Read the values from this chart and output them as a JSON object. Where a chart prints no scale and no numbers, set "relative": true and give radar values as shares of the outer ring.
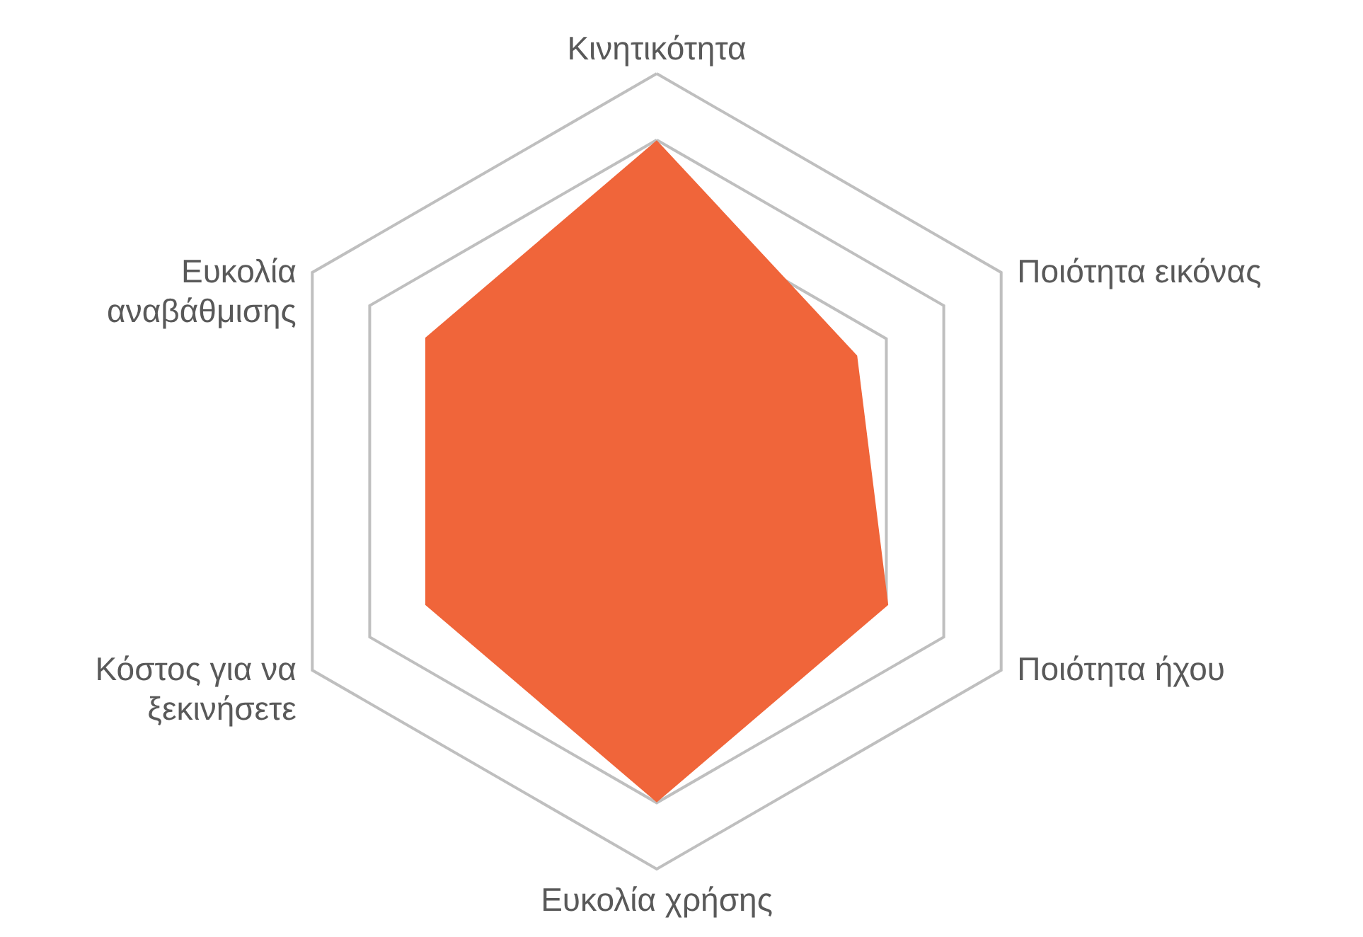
{
  "chart_data": {
    "type": "radar",
    "relative": true,
    "grid": true,
    "categories": [
      "Κινητικότητα",
      "Ποιότητα εικόνας",
      "Ποιότητα ήχου",
      "Ευκολία χρήσης",
      "Κόστος για να ξεκινήσετε",
      "Ευκολία αναβάθμισης"
    ],
    "series": [
      {
        "color": "#f0653a",
        "values": [
          0.83,
          0.58,
          0.67,
          0.83,
          0.67,
          0.67
        ]
      }
    ]
  }
}
